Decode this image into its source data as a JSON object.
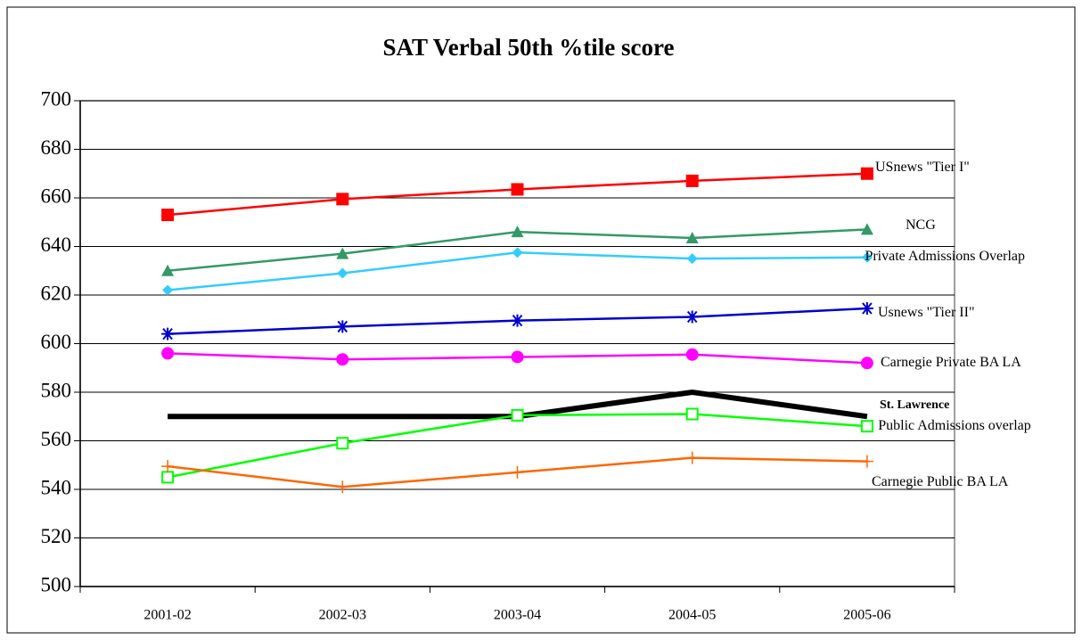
{
  "chart_data": {
    "type": "line",
    "title": "SAT Verbal 50th %tile score",
    "categories": [
      "2001-02",
      "2002-03",
      "2003-04",
      "2004-05",
      "2005-06"
    ],
    "ylim": [
      500,
      700
    ],
    "yticks": [
      500,
      520,
      540,
      560,
      580,
      600,
      620,
      640,
      660,
      680,
      700
    ],
    "grid": true,
    "series": [
      {
        "name": "USnews \"Tier I\"",
        "color": "#ff0000",
        "marker": "square",
        "values": [
          653,
          659.5,
          663.5,
          667,
          670
        ]
      },
      {
        "name": "NCG",
        "color": "#339966",
        "marker": "triangle",
        "values": [
          630,
          637,
          646,
          643.5,
          647
        ]
      },
      {
        "name": "Private Admissions Overlap",
        "color": "#33ccff",
        "marker": "diamond",
        "values": [
          622,
          629,
          637.5,
          635,
          635.5
        ]
      },
      {
        "name": "Usnews \"Tier II\"",
        "color": "#0000cc",
        "marker": "asterisk",
        "values": [
          604,
          607,
          609.5,
          611,
          614.5
        ]
      },
      {
        "name": "Carnegie Private BA LA",
        "color": "#ff00ff",
        "marker": "circle",
        "values": [
          596,
          593.5,
          594.5,
          595.5,
          592
        ]
      },
      {
        "name": "St. Lawrence",
        "color": "#000000",
        "marker": "none",
        "values": [
          570,
          570,
          570,
          580,
          570
        ]
      },
      {
        "name": "Public Admissions overlap",
        "color": "#00ff00",
        "marker": "hollow-square",
        "values": [
          545,
          559,
          570.5,
          571,
          566
        ]
      },
      {
        "name": "Carnegie Public BA LA",
        "color": "#ff6600",
        "marker": "plus",
        "values": [
          549.5,
          541,
          547,
          553,
          551.5
        ]
      }
    ]
  }
}
